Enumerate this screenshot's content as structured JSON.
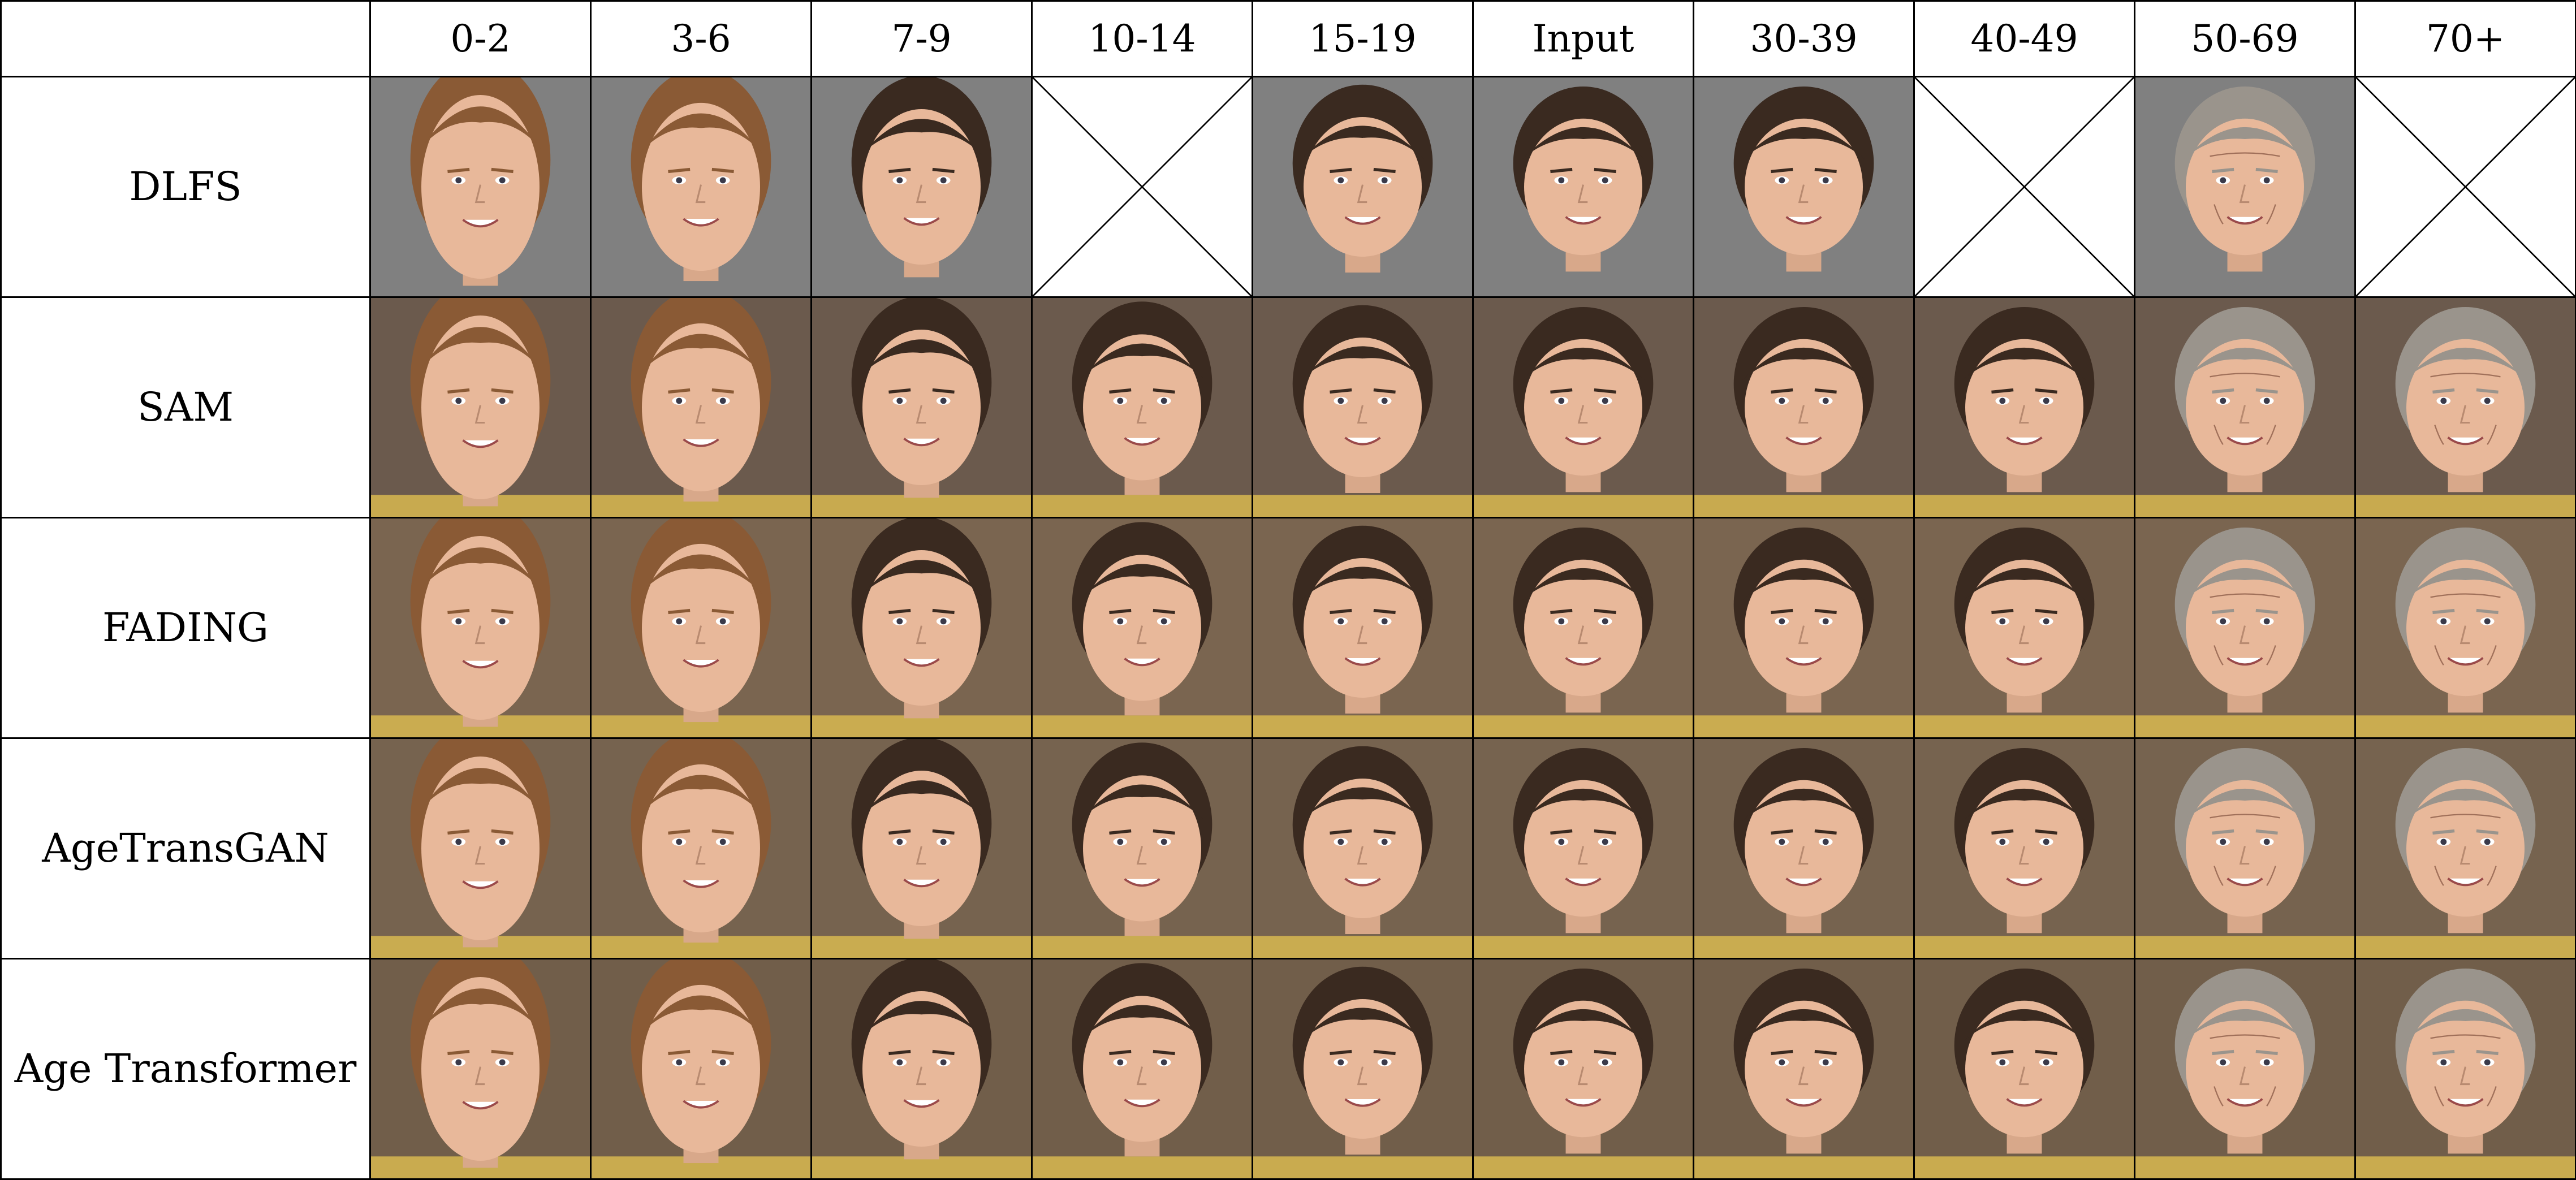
{
  "header": {
    "corner": "",
    "ages": [
      "0-2",
      "3-6",
      "7-9",
      "10-14",
      "15-19",
      "Input",
      "30-39",
      "40-49",
      "50-69",
      "70+"
    ]
  },
  "rows": [
    {
      "method": "DLFS",
      "bg": "#808080",
      "cells": [
        "face",
        "face",
        "face",
        "missing",
        "face",
        "face",
        "face",
        "missing",
        "face",
        "missing"
      ]
    },
    {
      "method": "SAM",
      "bg": "#6b5a4d",
      "cells": [
        "face",
        "face",
        "face",
        "face",
        "face",
        "face",
        "face",
        "face",
        "face",
        "face"
      ]
    },
    {
      "method": "FADING",
      "bg": "#7a6550",
      "cells": [
        "face",
        "face",
        "face",
        "face",
        "face",
        "face",
        "face",
        "face",
        "face",
        "face"
      ]
    },
    {
      "method": "AgeTransGAN",
      "bg": "#76634f",
      "cells": [
        "face",
        "face",
        "face",
        "face",
        "face",
        "face",
        "face",
        "face",
        "face",
        "face"
      ]
    },
    {
      "method": "Age Transformer",
      "bg": "#715e4a",
      "cells": [
        "face",
        "face",
        "face",
        "face",
        "face",
        "face",
        "face",
        "face",
        "face",
        "face"
      ]
    }
  ],
  "colors": {
    "skin": "#e8b89a",
    "hair_young": "#8a5a35",
    "hair_dark": "#3a2a20",
    "hair_grey": "#9a948c",
    "shirt": "#d8b850"
  }
}
